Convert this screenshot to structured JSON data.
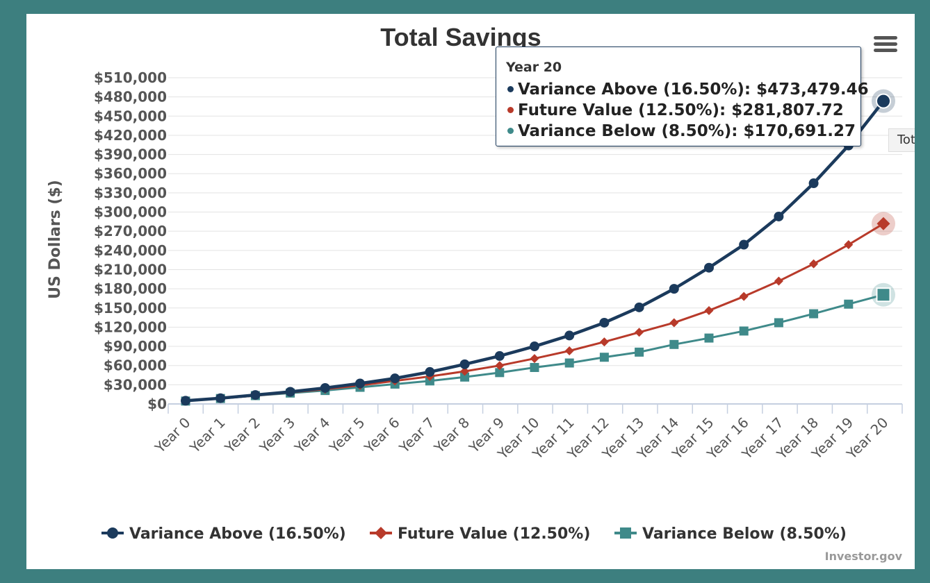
{
  "chart_data": {
    "type": "line",
    "title": "Total Savings",
    "ylabel": "US Dollars ($)",
    "xlabel": "",
    "ylim": [
      0,
      510000
    ],
    "ytick_values": [
      0,
      30000,
      60000,
      90000,
      120000,
      150000,
      180000,
      210000,
      240000,
      270000,
      300000,
      330000,
      360000,
      390000,
      420000,
      450000,
      480000,
      510000
    ],
    "ytick_labels": [
      "$0",
      "$30,000",
      "$60,000",
      "$90,000",
      "$120,000",
      "$150,000",
      "$180,000",
      "$210,000",
      "$240,000",
      "$270,000",
      "$300,000",
      "$330,000",
      "$360,000",
      "$390,000",
      "$420,000",
      "$450,000",
      "$480,000",
      "$510,000"
    ],
    "categories": [
      "Year 0",
      "Year 1",
      "Year 2",
      "Year 3",
      "Year 4",
      "Year 5",
      "Year 6",
      "Year 7",
      "Year 8",
      "Year 9",
      "Year 10",
      "Year 11",
      "Year 12",
      "Year 13",
      "Year 14",
      "Year 15",
      "Year 16",
      "Year 17",
      "Year 18",
      "Year 19",
      "Year 20"
    ],
    "grid": true,
    "legend_position": "bottom",
    "series": [
      {
        "name": "Variance Above (16.50%)",
        "color": "#1b3a5c",
        "marker": "circle",
        "values": [
          5000,
          9000,
          14000,
          19000,
          25000,
          32000,
          40000,
          50000,
          62000,
          75000,
          90000,
          107000,
          127000,
          151000,
          180000,
          213000,
          249000,
          293000,
          345000,
          404000,
          473479.46
        ]
      },
      {
        "name": "Future Value (12.50%)",
        "color": "#b83a2a",
        "marker": "diamond",
        "values": [
          5000,
          8500,
          13000,
          18000,
          23000,
          29000,
          36000,
          43000,
          51000,
          60000,
          71000,
          83000,
          97000,
          112000,
          127000,
          146000,
          168000,
          192000,
          219000,
          249000,
          281807.72
        ]
      },
      {
        "name": "Variance Below (8.50%)",
        "color": "#3f8a8a",
        "marker": "square",
        "values": [
          4500,
          8500,
          13000,
          17000,
          21000,
          26000,
          31000,
          36000,
          42000,
          49000,
          57000,
          64000,
          73000,
          81000,
          93000,
          103000,
          114000,
          127000,
          141000,
          156000,
          170691.27
        ]
      }
    ]
  },
  "tooltip": {
    "header": "Year 20",
    "rows": [
      {
        "text": "Variance Above (16.50%): $473,479.46",
        "color": "#1b3a5c"
      },
      {
        "text": "Future Value (12.50%): $281,807.72",
        "color": "#b83a2a"
      },
      {
        "text": "Variance Below (8.50%): $170,691.27",
        "color": "#3f8a8a"
      }
    ]
  },
  "side_label": "Total",
  "credit": "Investor.gov",
  "menu_icon": "hamburger-menu-icon"
}
